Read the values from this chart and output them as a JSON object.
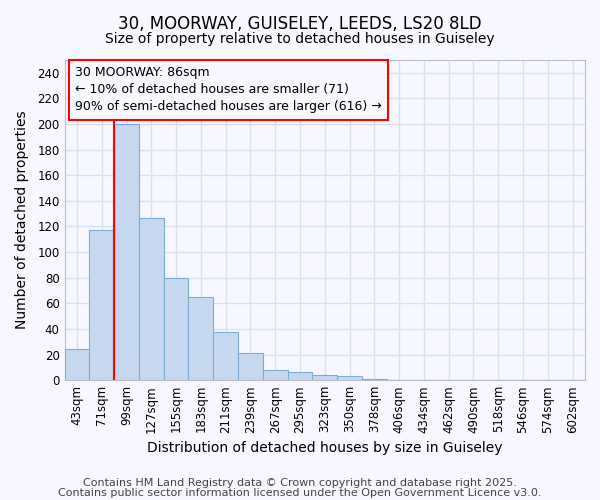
{
  "title_line1": "30, MOORWAY, GUISELEY, LEEDS, LS20 8LD",
  "title_line2": "Size of property relative to detached houses in Guiseley",
  "xlabel": "Distribution of detached houses by size in Guiseley",
  "ylabel": "Number of detached properties",
  "categories": [
    "43sqm",
    "71sqm",
    "99sqm",
    "127sqm",
    "155sqm",
    "183sqm",
    "211sqm",
    "239sqm",
    "267sqm",
    "295sqm",
    "323sqm",
    "350sqm",
    "378sqm",
    "406sqm",
    "434sqm",
    "462sqm",
    "490sqm",
    "518sqm",
    "546sqm",
    "574sqm",
    "602sqm"
  ],
  "values": [
    24,
    117,
    200,
    127,
    80,
    65,
    38,
    21,
    8,
    6,
    4,
    3,
    1,
    0,
    0,
    0,
    0,
    0,
    0,
    0,
    0
  ],
  "bar_color": "#c5d8f0",
  "bar_edge_color": "#7aadd4",
  "ylim": [
    0,
    250
  ],
  "yticks": [
    0,
    20,
    40,
    60,
    80,
    100,
    120,
    140,
    160,
    180,
    200,
    220,
    240
  ],
  "red_line_x": 1.5,
  "annotation_line1": "30 MOORWAY: 86sqm",
  "annotation_line2": "← 10% of detached houses are smaller (71)",
  "annotation_line3": "90% of semi-detached houses are larger (616) →",
  "footer_line1": "Contains HM Land Registry data © Crown copyright and database right 2025.",
  "footer_line2": "Contains public sector information licensed under the Open Government Licence v3.0.",
  "bg_color": "#f7f8ff",
  "grid_color": "#d8e0f0",
  "title_fontsize": 12,
  "subtitle_fontsize": 10,
  "axis_label_fontsize": 10,
  "tick_fontsize": 8.5,
  "annotation_fontsize": 9,
  "footer_fontsize": 8
}
